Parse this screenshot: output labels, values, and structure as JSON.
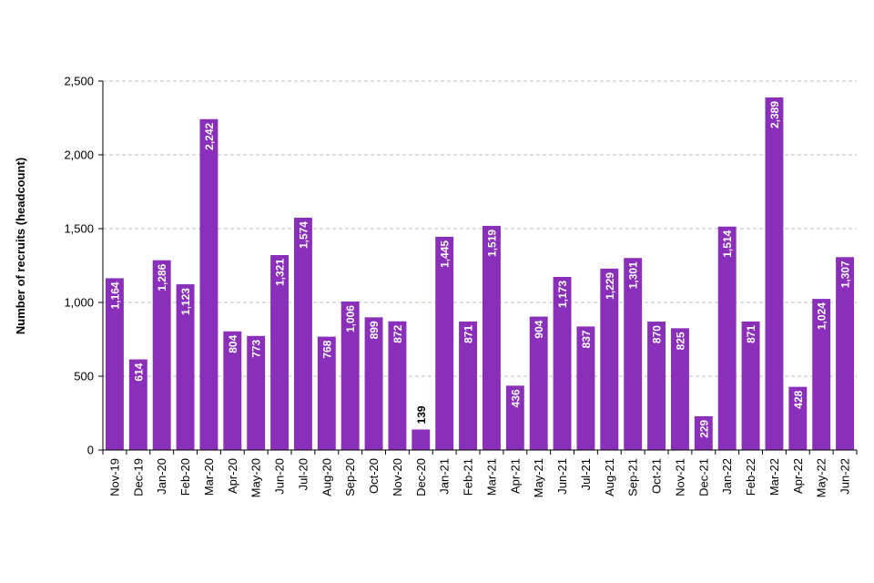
{
  "chart_data": {
    "type": "bar",
    "title": "",
    "xlabel": "",
    "ylabel": "Number of recruits (headcount)",
    "ylim": [
      0,
      2500
    ],
    "yticks": [
      0,
      500,
      1000,
      1500,
      2000,
      2500
    ],
    "ytick_labels": [
      "0",
      "500",
      "1,000",
      "1,500",
      "2,000",
      "2,500"
    ],
    "grid": "horizontal dashed",
    "legend": "none",
    "categories": [
      "Nov-19",
      "Dec-19",
      "Jan-20",
      "Feb-20",
      "Mar-20",
      "Apr-20",
      "May-20",
      "Jun-20",
      "Jul-20",
      "Aug-20",
      "Sep-20",
      "Oct-20",
      "Nov-20",
      "Dec-20",
      "Jan-21",
      "Feb-21",
      "Mar-21",
      "Apr-21",
      "May-21",
      "Jun-21",
      "Jul-21",
      "Aug-21",
      "Sep-21",
      "Oct-21",
      "Nov-21",
      "Dec-21",
      "Jan-22",
      "Feb-22",
      "Mar-22",
      "Apr-22",
      "May-22",
      "Jun-22"
    ],
    "values": [
      1164,
      614,
      1286,
      1123,
      2242,
      804,
      773,
      1321,
      1574,
      768,
      1006,
      899,
      872,
      139,
      1445,
      871,
      1519,
      436,
      904,
      1173,
      837,
      1229,
      1301,
      870,
      825,
      229,
      1514,
      871,
      2389,
      428,
      1024,
      1307
    ],
    "value_labels": [
      "1,164",
      "614",
      "1,286",
      "1,123",
      "2,242",
      "804",
      "773",
      "1,321",
      "1,574",
      "768",
      "1,006",
      "899",
      "872",
      "139",
      "1,445",
      "871",
      "1,519",
      "436",
      "904",
      "1,173",
      "837",
      "1,229",
      "1,301",
      "870",
      "825",
      "229",
      "1,514",
      "871",
      "2,389",
      "428",
      "1,024",
      "1,307"
    ],
    "colors": {
      "bar": "#8a2fba",
      "grid": "#bfbfbf",
      "axis": "#000000",
      "label_inside": "#ffffff",
      "label_outside": "#000000"
    }
  }
}
